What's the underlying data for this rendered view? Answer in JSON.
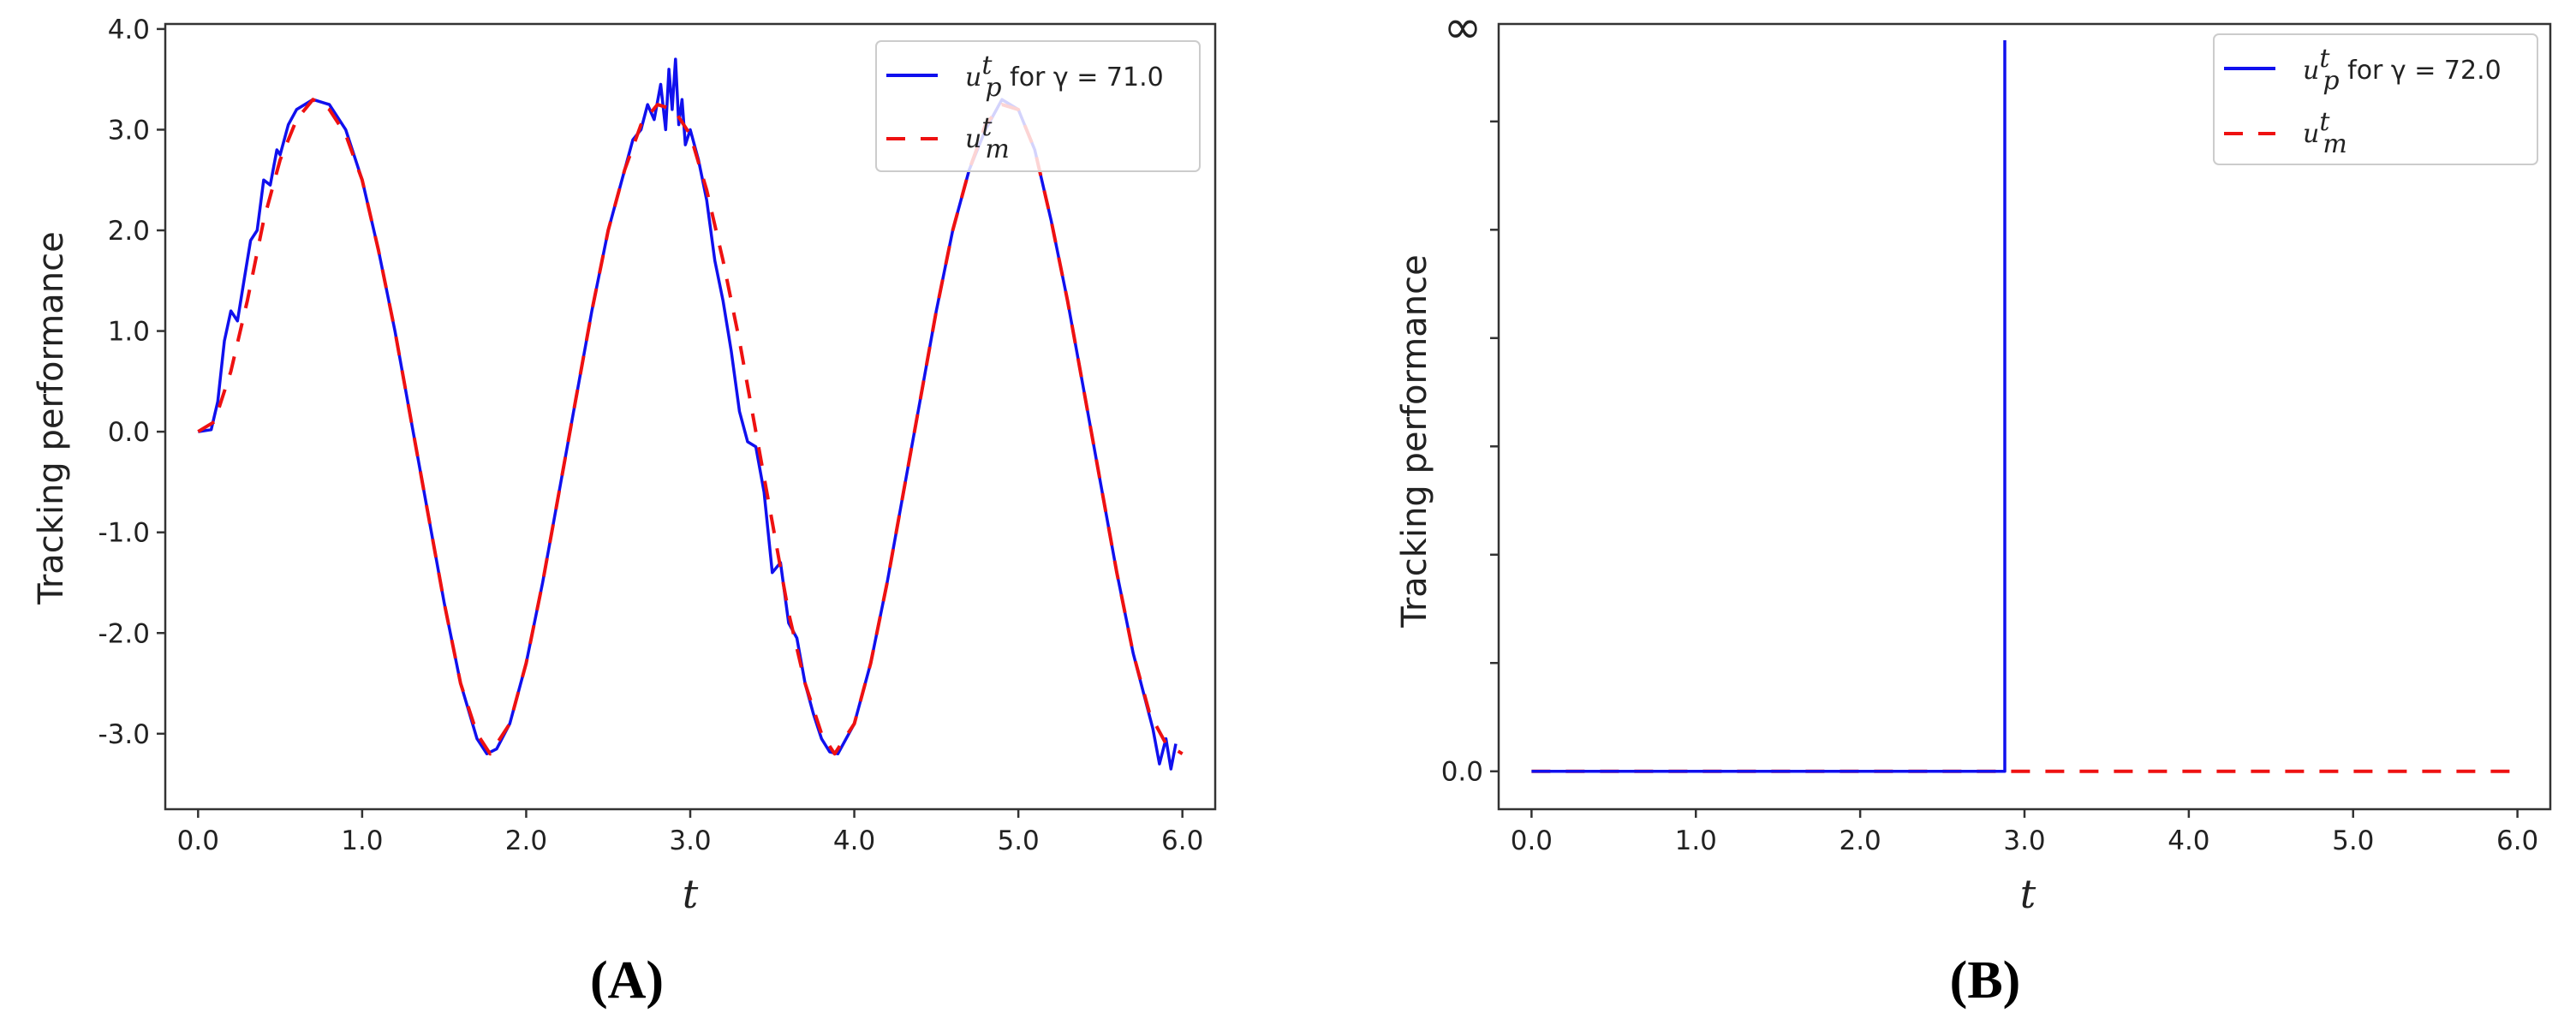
{
  "panels": [
    {
      "label": "(A)",
      "ylabel": "Tracking performance",
      "xlabel": "t",
      "legend": {
        "series1_sym": "u",
        "series1_sup": "t",
        "series1_sub": "p",
        "series1_text": " for γ = 71.0",
        "series2_sym": "u",
        "series2_sup": "t",
        "series2_sub": "m"
      }
    },
    {
      "label": "(B)",
      "ylabel": "Tracking performance",
      "xlabel": "t",
      "legend": {
        "series1_sym": "u",
        "series1_sup": "t",
        "series1_sub": "p",
        "series1_text": " for γ = 72.0",
        "series2_sym": "u",
        "series2_sup": "t",
        "series2_sub": "m"
      }
    }
  ],
  "chart_data": [
    {
      "type": "line",
      "xlabel": "t",
      "ylabel": "Tracking performance",
      "xlim": [
        -0.2,
        6.2
      ],
      "ylim": [
        -3.75,
        4.05
      ],
      "xticks": [
        0,
        1,
        2,
        3,
        4,
        5,
        6
      ],
      "xtick_labels": [
        "0.0",
        "1.0",
        "2.0",
        "3.0",
        "4.0",
        "5.0",
        "6.0"
      ],
      "yticks": [
        -3,
        -2,
        -1,
        0,
        1,
        2,
        3,
        4
      ],
      "ytick_labels": [
        "-3.0",
        "-2.0",
        "-1.0",
        "0.0",
        "1.0",
        "2.0",
        "3.0",
        "4.0"
      ],
      "legend_position": "top-right",
      "series": [
        {
          "name": "u_p^t for γ = 71.0",
          "color": "#1010ee",
          "style": "solid",
          "points": [
            [
              0.0,
              0.0
            ],
            [
              0.08,
              0.02
            ],
            [
              0.12,
              0.3
            ],
            [
              0.16,
              0.9
            ],
            [
              0.2,
              1.2
            ],
            [
              0.24,
              1.1
            ],
            [
              0.28,
              1.5
            ],
            [
              0.32,
              1.9
            ],
            [
              0.36,
              2.0
            ],
            [
              0.4,
              2.5
            ],
            [
              0.44,
              2.45
            ],
            [
              0.48,
              2.8
            ],
            [
              0.5,
              2.75
            ],
            [
              0.55,
              3.05
            ],
            [
              0.6,
              3.2
            ],
            [
              0.7,
              3.3
            ],
            [
              0.8,
              3.25
            ],
            [
              0.9,
              3.0
            ],
            [
              1.0,
              2.5
            ],
            [
              1.1,
              1.8
            ],
            [
              1.2,
              1.0
            ],
            [
              1.3,
              0.1
            ],
            [
              1.4,
              -0.8
            ],
            [
              1.5,
              -1.7
            ],
            [
              1.6,
              -2.5
            ],
            [
              1.7,
              -3.05
            ],
            [
              1.76,
              -3.2
            ],
            [
              1.82,
              -3.15
            ],
            [
              1.9,
              -2.9
            ],
            [
              2.0,
              -2.3
            ],
            [
              2.1,
              -1.5
            ],
            [
              2.2,
              -0.6
            ],
            [
              2.3,
              0.3
            ],
            [
              2.4,
              1.2
            ],
            [
              2.5,
              2.0
            ],
            [
              2.6,
              2.6
            ],
            [
              2.65,
              2.9
            ],
            [
              2.7,
              3.0
            ],
            [
              2.74,
              3.25
            ],
            [
              2.78,
              3.1
            ],
            [
              2.82,
              3.45
            ],
            [
              2.85,
              3.0
            ],
            [
              2.87,
              3.6
            ],
            [
              2.89,
              3.2
            ],
            [
              2.91,
              3.7
            ],
            [
              2.93,
              3.05
            ],
            [
              2.95,
              3.3
            ],
            [
              2.97,
              2.85
            ],
            [
              3.0,
              3.0
            ],
            [
              3.05,
              2.7
            ],
            [
              3.1,
              2.3
            ],
            [
              3.15,
              1.7
            ],
            [
              3.2,
              1.3
            ],
            [
              3.25,
              0.8
            ],
            [
              3.3,
              0.2
            ],
            [
              3.35,
              -0.1
            ],
            [
              3.4,
              -0.15
            ],
            [
              3.45,
              -0.6
            ],
            [
              3.5,
              -1.4
            ],
            [
              3.55,
              -1.3
            ],
            [
              3.6,
              -1.9
            ],
            [
              3.65,
              -2.05
            ],
            [
              3.7,
              -2.5
            ],
            [
              3.75,
              -2.8
            ],
            [
              3.8,
              -3.05
            ],
            [
              3.85,
              -3.18
            ],
            [
              3.9,
              -3.2
            ],
            [
              4.0,
              -2.9
            ],
            [
              4.1,
              -2.3
            ],
            [
              4.2,
              -1.5
            ],
            [
              4.3,
              -0.6
            ],
            [
              4.4,
              0.3
            ],
            [
              4.5,
              1.2
            ],
            [
              4.6,
              2.0
            ],
            [
              4.7,
              2.6
            ],
            [
              4.8,
              3.0
            ],
            [
              4.9,
              3.3
            ],
            [
              5.0,
              3.2
            ],
            [
              5.1,
              2.8
            ],
            [
              5.2,
              2.1
            ],
            [
              5.3,
              1.3
            ],
            [
              5.4,
              0.4
            ],
            [
              5.5,
              -0.5
            ],
            [
              5.6,
              -1.4
            ],
            [
              5.7,
              -2.2
            ],
            [
              5.78,
              -2.7
            ],
            [
              5.82,
              -2.95
            ],
            [
              5.86,
              -3.3
            ],
            [
              5.9,
              -3.05
            ],
            [
              5.93,
              -3.35
            ],
            [
              5.96,
              -3.1
            ]
          ]
        },
        {
          "name": "u_m^t",
          "color": "#ee1111",
          "style": "dashed",
          "points": [
            [
              0.0,
              0.0
            ],
            [
              0.1,
              0.1
            ],
            [
              0.2,
              0.6
            ],
            [
              0.3,
              1.3
            ],
            [
              0.4,
              2.1
            ],
            [
              0.5,
              2.7
            ],
            [
              0.6,
              3.1
            ],
            [
              0.7,
              3.3
            ],
            [
              0.8,
              3.2
            ],
            [
              0.9,
              2.95
            ],
            [
              1.0,
              2.5
            ],
            [
              1.1,
              1.8
            ],
            [
              1.2,
              1.0
            ],
            [
              1.3,
              0.1
            ],
            [
              1.4,
              -0.8
            ],
            [
              1.5,
              -1.7
            ],
            [
              1.6,
              -2.5
            ],
            [
              1.7,
              -3.0
            ],
            [
              1.78,
              -3.2
            ],
            [
              1.9,
              -2.9
            ],
            [
              2.0,
              -2.3
            ],
            [
              2.1,
              -1.5
            ],
            [
              2.2,
              -0.6
            ],
            [
              2.3,
              0.3
            ],
            [
              2.4,
              1.2
            ],
            [
              2.5,
              2.0
            ],
            [
              2.6,
              2.6
            ],
            [
              2.7,
              3.05
            ],
            [
              2.8,
              3.25
            ],
            [
              2.9,
              3.2
            ],
            [
              3.0,
              2.95
            ],
            [
              3.1,
              2.4
            ],
            [
              3.2,
              1.7
            ],
            [
              3.3,
              0.9
            ],
            [
              3.4,
              0.0
            ],
            [
              3.5,
              -0.9
            ],
            [
              3.6,
              -1.8
            ],
            [
              3.7,
              -2.5
            ],
            [
              3.8,
              -3.0
            ],
            [
              3.88,
              -3.2
            ],
            [
              4.0,
              -2.9
            ],
            [
              4.1,
              -2.3
            ],
            [
              4.2,
              -1.5
            ],
            [
              4.3,
              -0.6
            ],
            [
              4.4,
              0.3
            ],
            [
              4.5,
              1.2
            ],
            [
              4.6,
              2.0
            ],
            [
              4.7,
              2.6
            ],
            [
              4.8,
              3.05
            ],
            [
              4.9,
              3.25
            ],
            [
              5.0,
              3.2
            ],
            [
              5.1,
              2.8
            ],
            [
              5.2,
              2.1
            ],
            [
              5.3,
              1.3
            ],
            [
              5.4,
              0.4
            ],
            [
              5.5,
              -0.5
            ],
            [
              5.6,
              -1.4
            ],
            [
              5.7,
              -2.2
            ],
            [
              5.8,
              -2.8
            ],
            [
              5.9,
              -3.1
            ],
            [
              6.0,
              -3.2
            ]
          ]
        }
      ]
    },
    {
      "type": "line",
      "xlabel": "t",
      "ylabel": "Tracking performance",
      "xlim": [
        -0.2,
        6.2
      ],
      "ylim": [
        -0.35,
        6.9
      ],
      "xticks": [
        0,
        1,
        2,
        3,
        4,
        5,
        6
      ],
      "xtick_labels": [
        "0.0",
        "1.0",
        "2.0",
        "3.0",
        "4.0",
        "5.0",
        "6.0"
      ],
      "yticks": [
        0,
        1,
        2,
        3,
        4,
        5,
        6
      ],
      "ytick_labels": [
        "0.0",
        "",
        "",
        "",
        "",
        "",
        ""
      ],
      "top_label": "∞",
      "legend_position": "top-right",
      "series": [
        {
          "name": "u_p^t for γ = 72.0",
          "color": "#1010ee",
          "style": "solid",
          "points": [
            [
              0.0,
              0.0
            ],
            [
              2.88,
              0.0
            ],
            [
              2.88,
              6.75
            ]
          ]
        },
        {
          "name": "u_m^t",
          "color": "#ee1111",
          "style": "dashed",
          "points": [
            [
              0.0,
              0.0
            ],
            [
              6.0,
              0.0
            ]
          ]
        }
      ]
    }
  ]
}
